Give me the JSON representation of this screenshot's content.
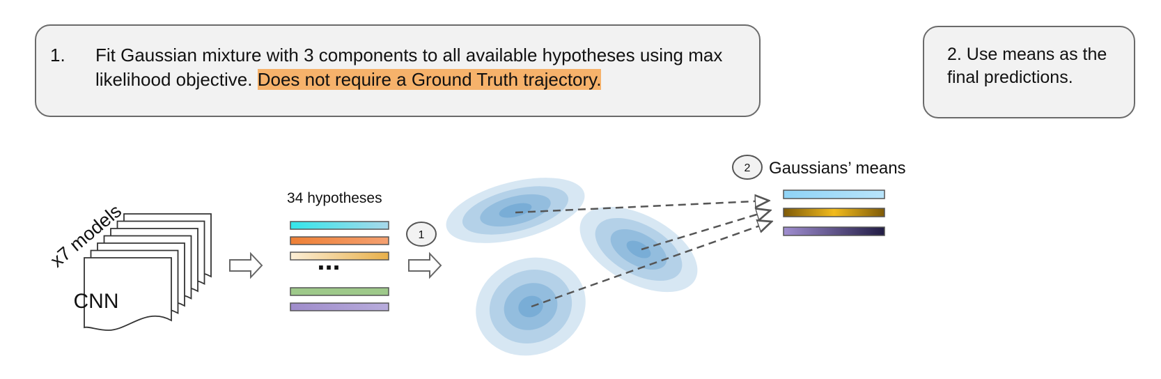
{
  "step1": {
    "number": "1.",
    "text": "Fit Gaussian mixture with 3 components to all available hypotheses using max likelihood objective.",
    "highlight": "Does not require a Ground Truth trajectory."
  },
  "step2": {
    "text": "2. Use means as the final predictions."
  },
  "models": {
    "label": "x7 models",
    "cnn_label": "CNN",
    "count": 7
  },
  "hypotheses": {
    "label": "34 hypotheses",
    "ellipsis": "...",
    "bars": [
      {
        "from": "#33e6ea",
        "to": "#a8d8ea"
      },
      {
        "from": "#ee8036",
        "to": "#f4a070"
      },
      {
        "from": "#fbeed6",
        "to": "#e8b04a"
      },
      {
        "from": "#9ec98a",
        "to": "#9ec98a"
      },
      {
        "from": "#9f8ccb",
        "to": "#b8acdc"
      }
    ]
  },
  "step_markers": {
    "one": "1",
    "two": "2"
  },
  "means": {
    "label": "Gaussians’ means",
    "bars": [
      {
        "from": "#8fd3f6",
        "to": "#b8e4fa"
      },
      {
        "from": "#7e5a08",
        "to": "#f2bb1d",
        "to2": "#7e5a08"
      },
      {
        "from": "#a08ed0",
        "to": "#211c44"
      }
    ]
  },
  "colors": {
    "box_fill": "#f2f2f2",
    "highlight": "#f6b26b",
    "gaussian": "#4a90c8"
  }
}
